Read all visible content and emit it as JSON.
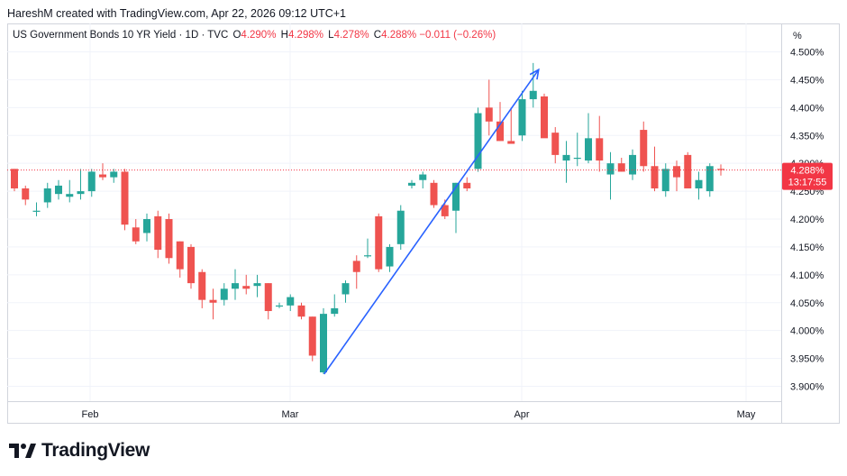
{
  "header": {
    "text": "HareshM created with TradingView.com, Apr 22, 2026 09:12 UTC+1"
  },
  "legend": {
    "name": "US Government Bonds 10 YR Yield · 1D · TVC",
    "o_label": "O",
    "o_value": "4.290%",
    "h_label": "H",
    "h_value": "4.298%",
    "l_label": "L",
    "l_value": "4.278%",
    "c_label": "C",
    "c_value": "4.288%",
    "change": "−0.011 (−0.26%)"
  },
  "price_axis": {
    "unit_label": "%",
    "ticks": [
      "4.500%",
      "4.450%",
      "4.400%",
      "4.350%",
      "4.300%",
      "4.250%",
      "4.200%",
      "4.150%",
      "4.100%",
      "4.050%",
      "4.000%",
      "3.950%",
      "3.900%"
    ],
    "current_price": "4.288%",
    "countdown": "13:17:55"
  },
  "time_axis": {
    "labels": [
      "Feb",
      "Mar",
      "Apr",
      "May"
    ]
  },
  "brand": {
    "name": "TradingView"
  },
  "colors": {
    "up": "#26a69a",
    "down": "#ef5350",
    "trend": "#2962ff",
    "price_line": "#f23645"
  },
  "chart_data": {
    "type": "candlestick",
    "symbol": "US10Y",
    "interval": "1D",
    "y_unit": "%",
    "ylim": [
      3.88,
      4.53
    ],
    "grid": true,
    "x_tick_labels": [
      "Feb",
      "Mar",
      "Apr",
      "May"
    ],
    "ohlc": [
      [
        4.29,
        4.29,
        4.25,
        4.255
      ],
      [
        4.255,
        4.26,
        4.225,
        4.235
      ],
      [
        4.215,
        4.23,
        4.205,
        4.215
      ],
      [
        4.23,
        4.265,
        4.22,
        4.255
      ],
      [
        4.245,
        4.27,
        4.235,
        4.26
      ],
      [
        4.24,
        4.27,
        4.23,
        4.245
      ],
      [
        4.245,
        4.29,
        4.235,
        4.25
      ],
      [
        4.25,
        4.29,
        4.24,
        4.285
      ],
      [
        4.28,
        4.3,
        4.27,
        4.275
      ],
      [
        4.275,
        4.29,
        4.265,
        4.285
      ],
      [
        4.285,
        4.29,
        4.18,
        4.19
      ],
      [
        4.185,
        4.2,
        4.155,
        4.16
      ],
      [
        4.175,
        4.21,
        4.16,
        4.2
      ],
      [
        4.205,
        4.215,
        4.13,
        4.145
      ],
      [
        4.2,
        4.21,
        4.12,
        4.13
      ],
      [
        4.16,
        4.16,
        4.095,
        4.11
      ],
      [
        4.15,
        4.155,
        4.075,
        4.085
      ],
      [
        4.105,
        4.11,
        4.04,
        4.055
      ],
      [
        4.055,
        4.075,
        4.02,
        4.05
      ],
      [
        4.055,
        4.085,
        4.045,
        4.075
      ],
      [
        4.075,
        4.11,
        4.055,
        4.085
      ],
      [
        4.08,
        4.1,
        4.065,
        4.075
      ],
      [
        4.08,
        4.1,
        4.06,
        4.085
      ],
      [
        4.085,
        4.085,
        4.02,
        4.035
      ],
      [
        4.045,
        4.05,
        4.04,
        4.045
      ],
      [
        4.045,
        4.065,
        4.035,
        4.06
      ],
      [
        4.045,
        4.05,
        4.02,
        4.025
      ],
      [
        4.025,
        4.025,
        3.945,
        3.955
      ],
      [
        3.925,
        4.04,
        3.922,
        4.03
      ],
      [
        4.03,
        4.065,
        4.025,
        4.04
      ],
      [
        4.065,
        4.09,
        4.05,
        4.085
      ],
      [
        4.125,
        4.135,
        4.075,
        4.105
      ],
      [
        4.135,
        4.165,
        4.13,
        4.135
      ],
      [
        4.205,
        4.21,
        4.105,
        4.11
      ],
      [
        4.115,
        4.155,
        4.105,
        4.15
      ],
      [
        4.155,
        4.225,
        4.145,
        4.215
      ],
      [
        4.26,
        4.27,
        4.255,
        4.265
      ],
      [
        4.27,
        4.285,
        4.255,
        4.28
      ],
      [
        4.265,
        4.27,
        4.22,
        4.225
      ],
      [
        4.225,
        4.235,
        4.2,
        4.205
      ],
      [
        4.215,
        4.265,
        4.175,
        4.265
      ],
      [
        4.265,
        4.275,
        4.25,
        4.255
      ],
      [
        4.29,
        4.4,
        4.285,
        4.39
      ],
      [
        4.4,
        4.45,
        4.35,
        4.375
      ],
      [
        4.375,
        4.41,
        4.34,
        4.34
      ],
      [
        4.34,
        4.4,
        4.335,
        4.335
      ],
      [
        4.35,
        4.43,
        4.34,
        4.415
      ],
      [
        4.415,
        4.48,
        4.4,
        4.43
      ],
      [
        4.42,
        4.425,
        4.35,
        4.345
      ],
      [
        4.355,
        4.365,
        4.3,
        4.315
      ],
      [
        4.305,
        4.34,
        4.265,
        4.315
      ],
      [
        4.31,
        4.355,
        4.295,
        4.31
      ],
      [
        4.305,
        4.39,
        4.3,
        4.345
      ],
      [
        4.345,
        4.385,
        4.285,
        4.305
      ],
      [
        4.28,
        4.32,
        4.235,
        4.3
      ],
      [
        4.3,
        4.31,
        4.285,
        4.285
      ],
      [
        4.28,
        4.325,
        4.27,
        4.315
      ],
      [
        4.36,
        4.375,
        4.285,
        4.295
      ],
      [
        4.295,
        4.33,
        4.25,
        4.255
      ],
      [
        4.25,
        4.3,
        4.24,
        4.29
      ],
      [
        4.295,
        4.305,
        4.25,
        4.275
      ],
      [
        4.315,
        4.32,
        4.26,
        4.255
      ],
      [
        4.255,
        4.285,
        4.235,
        4.27
      ],
      [
        4.25,
        4.3,
        4.24,
        4.295
      ],
      [
        4.29,
        4.298,
        4.278,
        4.288
      ]
    ]
  }
}
